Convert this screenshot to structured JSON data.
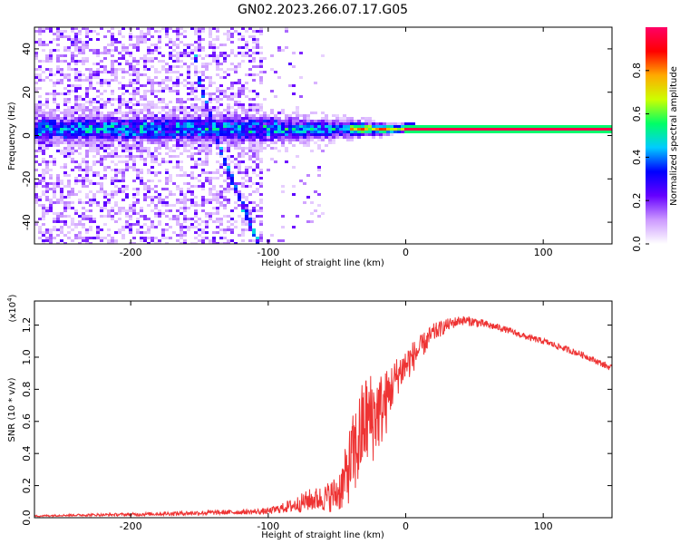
{
  "title": "GN02.2023.266.07.17.G05",
  "colors": {
    "snr_line": "#ee3333",
    "band_core": "#ee2222",
    "band_edge": "#00ff55"
  },
  "chart_data": [
    {
      "type": "heatmap",
      "title": "GN02.2023.266.07.17.G05",
      "xlabel": "Height of straight line (km)",
      "ylabel": "Frequency (Hz)",
      "xlim": [
        -270,
        150
      ],
      "ylim": [
        -50,
        50
      ],
      "xticks": [
        -200,
        -100,
        0,
        100
      ],
      "yticks": [
        -40,
        -20,
        0,
        20,
        40
      ],
      "colorbar": {
        "label": "Normalized spectral amplitude",
        "range": [
          0.0,
          1.0
        ],
        "ticks": [
          0.0,
          0.2,
          0.4,
          0.6,
          0.8
        ],
        "colormap": [
          "#ffffff",
          "#cc99ff",
          "#6600ff",
          "#0000ff",
          "#00ccff",
          "#00ff66",
          "#ccff00",
          "#ffaa00",
          "#ff0000",
          "#ff0066"
        ]
      },
      "features": [
        {
          "name": "main band",
          "x_start": -270,
          "x_end": 150,
          "freq_center": 3,
          "freq_halfwidth_start": 5,
          "freq_halfwidth_end": 1
        },
        {
          "name": "diagonal streak",
          "points": [
            [
              -155,
              45
            ],
            [
              -150,
              25
            ],
            [
              -138,
              0
            ],
            [
              -130,
              -15
            ],
            [
              -120,
              -30
            ],
            [
              -107,
              -50
            ]
          ]
        }
      ]
    },
    {
      "type": "line",
      "xlabel": "Height of straight line (km)",
      "ylabel": "SNR (10 * v/v)",
      "y_multiplier": "(x10",
      "y_multiplier_exp": "4",
      "y_multiplier_close": ")",
      "xlim": [
        -270,
        150
      ],
      "ylim": [
        0,
        1.35
      ],
      "xticks": [
        -200,
        -100,
        0,
        100
      ],
      "yticks": [
        0.0,
        0.2,
        0.4,
        0.6,
        0.8,
        1.0,
        1.2
      ],
      "series": [
        {
          "x": [
            -270,
            -250,
            -200,
            -150,
            -120,
            -100,
            -90,
            -80,
            -70,
            -60,
            -50,
            -45,
            -40,
            -35,
            -30,
            -25,
            -20,
            -15,
            -10,
            -5,
            0,
            5,
            10,
            15,
            20,
            30,
            40,
            50,
            60,
            70,
            80,
            90,
            100,
            110,
            120,
            130,
            140,
            150
          ],
          "y": [
            0.01,
            0.015,
            0.02,
            0.03,
            0.035,
            0.04,
            0.06,
            0.08,
            0.11,
            0.12,
            0.15,
            0.22,
            0.35,
            0.45,
            0.6,
            0.62,
            0.66,
            0.7,
            0.82,
            0.9,
            0.95,
            1.0,
            1.05,
            1.1,
            1.15,
            1.2,
            1.23,
            1.22,
            1.2,
            1.18,
            1.15,
            1.12,
            1.1,
            1.07,
            1.04,
            1.01,
            0.97,
            0.93
          ],
          "noise": [
            0.005,
            0.006,
            0.01,
            0.015,
            0.015,
            0.02,
            0.03,
            0.05,
            0.07,
            0.08,
            0.12,
            0.17,
            0.25,
            0.3,
            0.3,
            0.3,
            0.25,
            0.22,
            0.15,
            0.12,
            0.12,
            0.1,
            0.08,
            0.07,
            0.06,
            0.04,
            0.03,
            0.03,
            0.025,
            0.02,
            0.02,
            0.02,
            0.02,
            0.02,
            0.02,
            0.02,
            0.02,
            0.02
          ]
        }
      ]
    }
  ]
}
